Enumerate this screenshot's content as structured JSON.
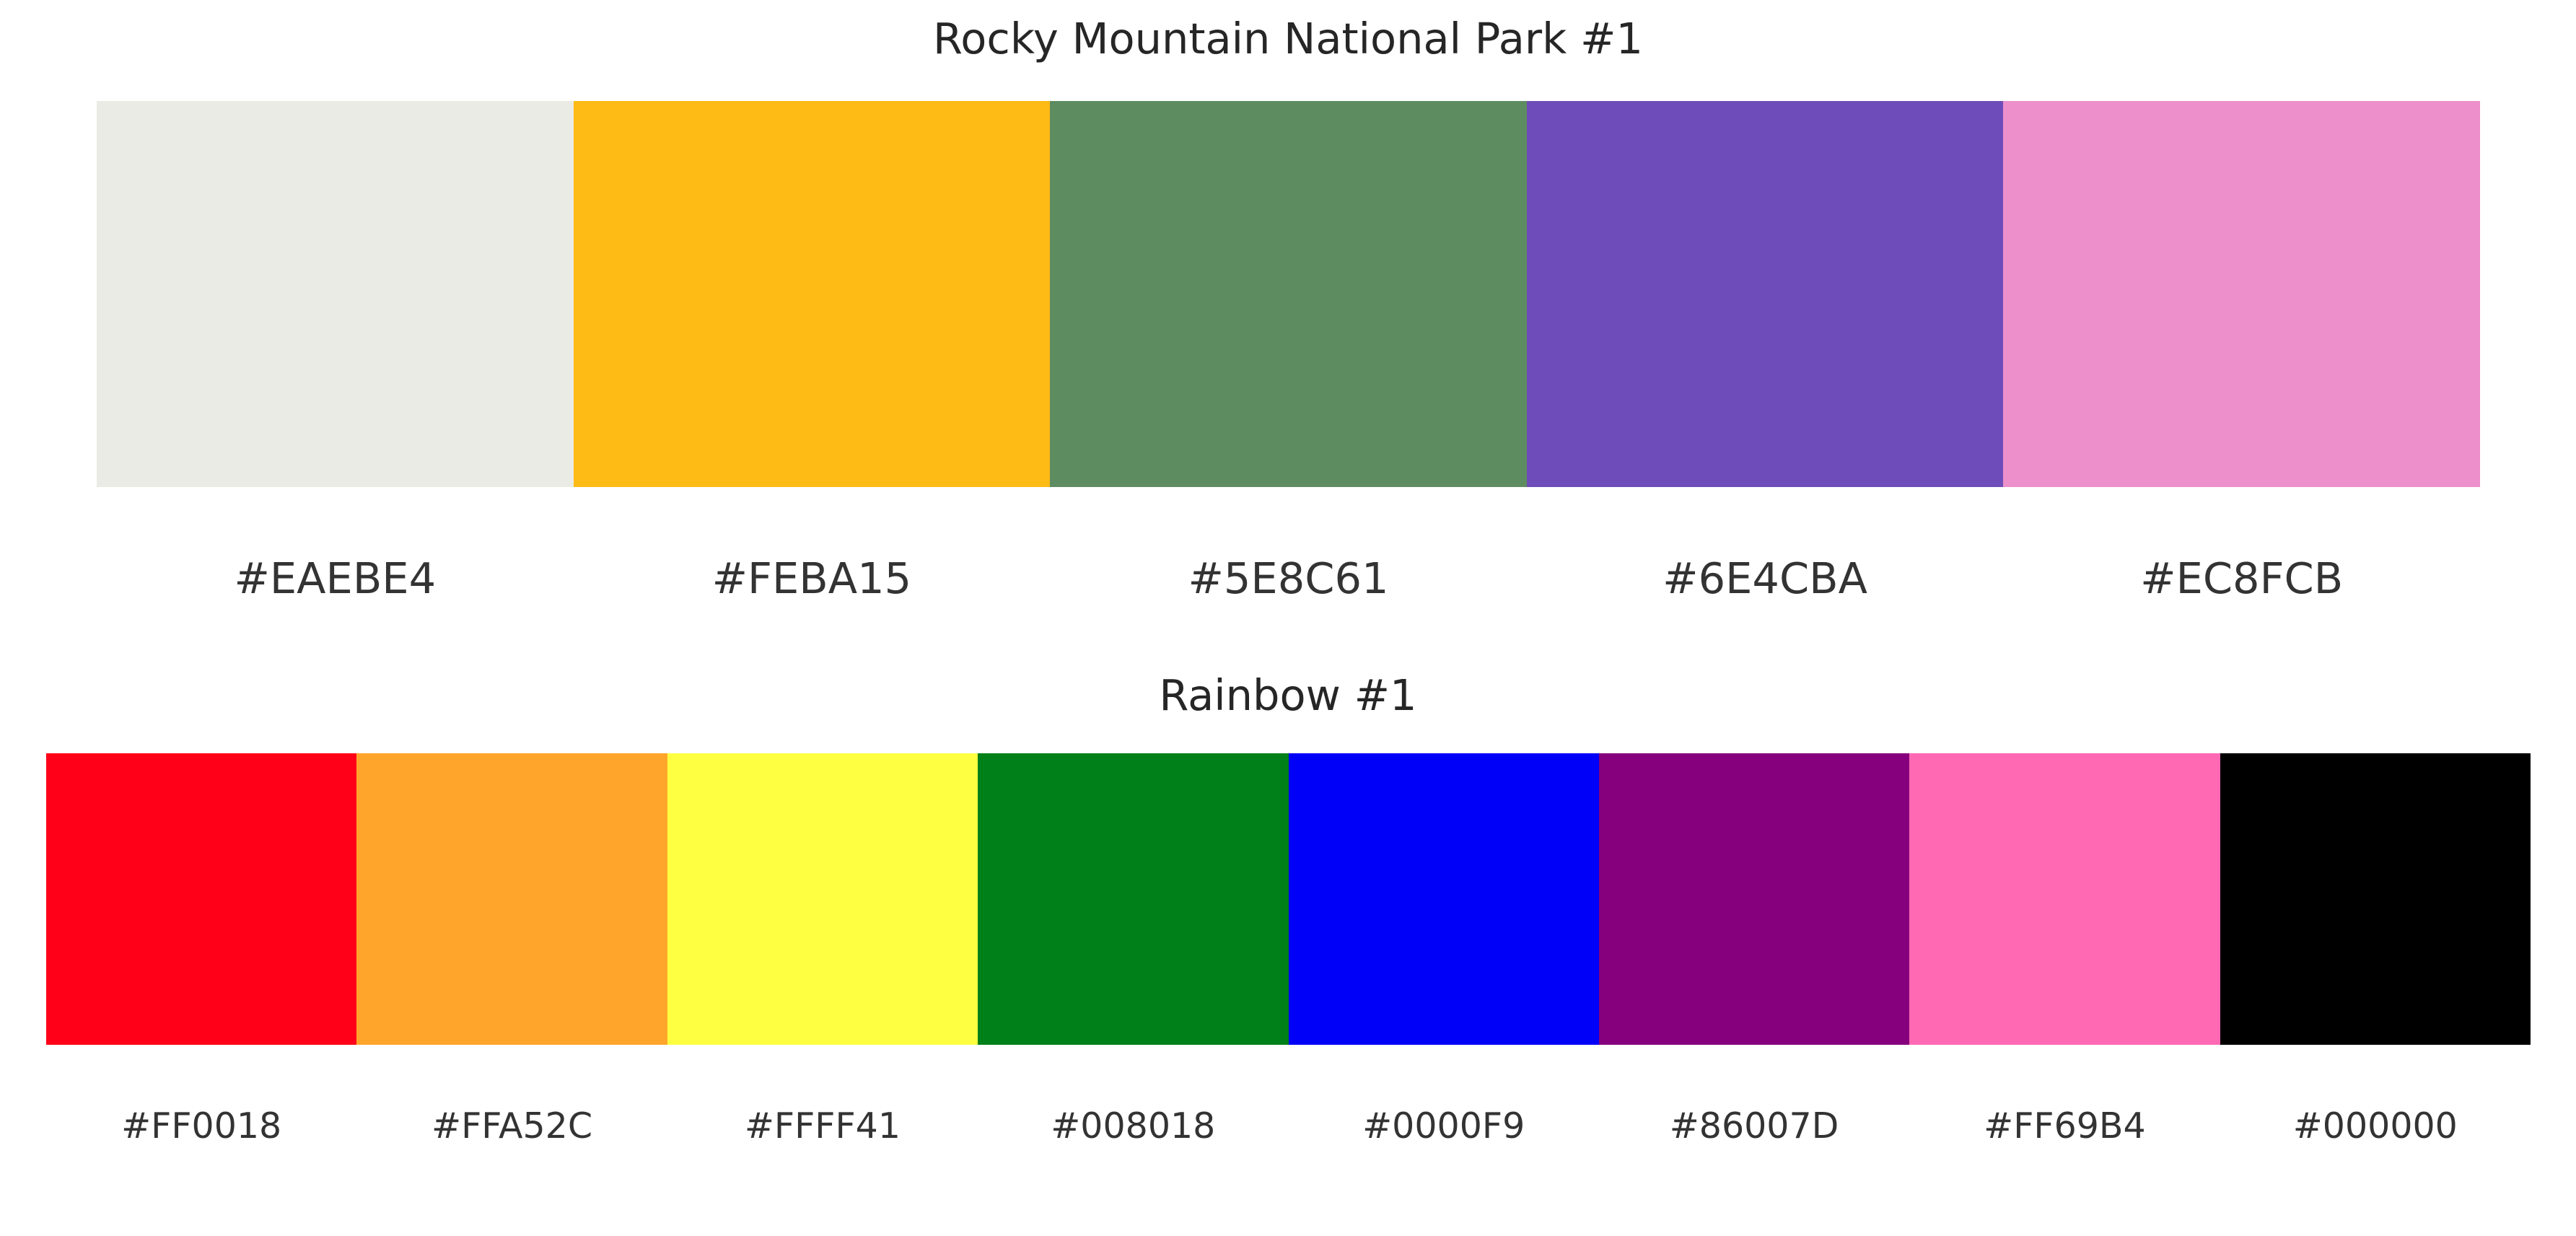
{
  "palettes": [
    {
      "title": "Rocky Mountain National Park #1",
      "colors": [
        "#EAEBE4",
        "#FEBA15",
        "#5E8C61",
        "#6E4CBA",
        "#EC8FCB"
      ],
      "labels": [
        "#EAEBE4",
        "#FEBA15",
        "#5E8C61",
        "#6E4CBA",
        "#EC8FCB"
      ]
    },
    {
      "title": "Rainbow #1",
      "colors": [
        "#FF0018",
        "#FFA52C",
        "#FFFF41",
        "#008018",
        "#0000F9",
        "#86007D",
        "#FF69B4",
        "#000000"
      ],
      "labels": [
        "#FF0018",
        "#FFA52C",
        "#FFFF41",
        "#008018",
        "#0000F9",
        "#86007D",
        "#FF69B4",
        "#000000"
      ]
    }
  ]
}
